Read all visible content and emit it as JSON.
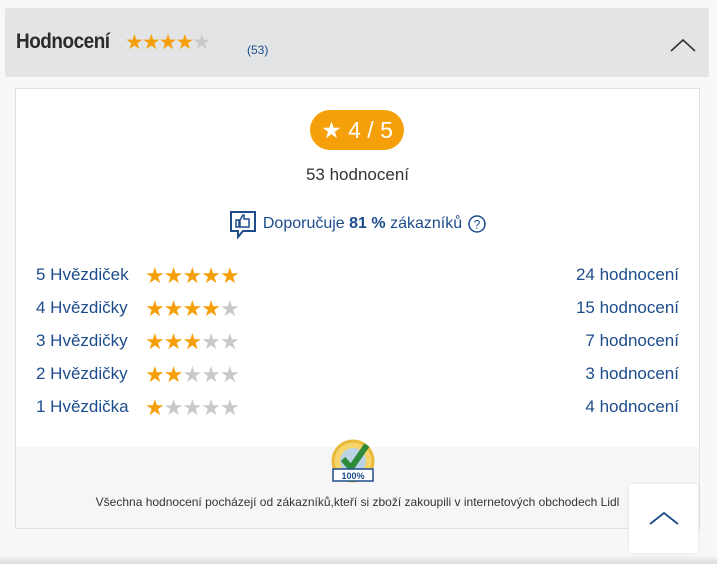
{
  "header": {
    "title": "Hodnocení",
    "rating": 4,
    "count": "(53)"
  },
  "summary": {
    "badge": "★ 4 / 5",
    "total": "53 hodnocení",
    "recommend_prefix": "Doporučuje",
    "recommend_value": "81 %",
    "recommend_suffix": "zákazníků"
  },
  "rows": [
    {
      "label": "5 Hvězdiček",
      "stars": 5,
      "count": "24 hodnocení"
    },
    {
      "label": "4 Hvězdičky",
      "stars": 4,
      "count": "15 hodnocení"
    },
    {
      "label": "3 Hvězdičky",
      "stars": 3,
      "count": "7 hodnocení"
    },
    {
      "label": "2 Hvězdičky",
      "stars": 2,
      "count": "3 hodnocení"
    },
    {
      "label": "1 Hvězdička",
      "stars": 1,
      "count": "4 hodnocení"
    }
  ],
  "footer": {
    "seal_text": "100%",
    "note": "Všechna hodnocení pocházejí od zákazníků,kteří si zboží zakoupili v internetových obchodech Lidl"
  },
  "colors": {
    "accent": "#f5a00a",
    "link": "#1c4c8c"
  }
}
